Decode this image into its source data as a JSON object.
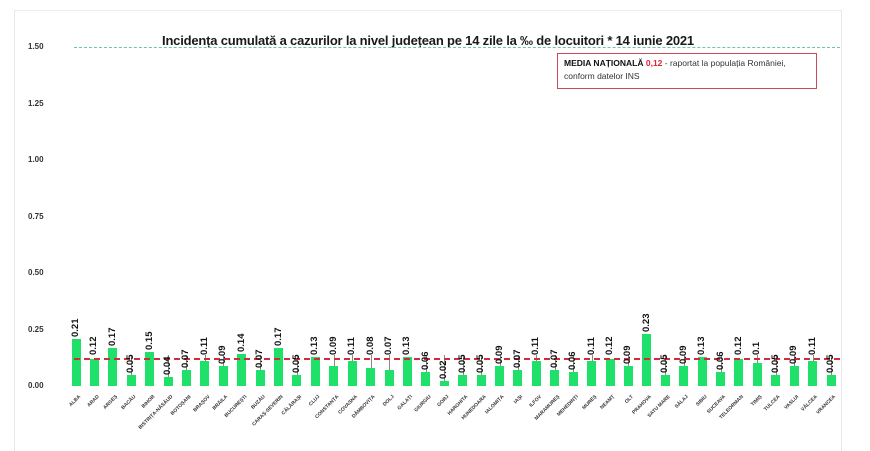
{
  "chart_data": {
    "type": "bar",
    "title": "Incidența cumulată a cazurilor la nivel județean pe 14 zile la ‰ de locuitori *  14 iunie 2021",
    "xlabel": "",
    "ylabel": "",
    "ylim": [
      0,
      1.5
    ],
    "yticks": [
      "0.00",
      "0.25",
      "0.50",
      "0.75",
      "1.00",
      "1.25",
      "1.50"
    ],
    "grid": false,
    "categories": [
      "ALBA",
      "ARAD",
      "ARGEȘ",
      "BACĂU",
      "BIHOR",
      "BISTRIȚA-NĂSĂUD",
      "BOTOȘANI",
      "BRAȘOV",
      "BRĂILA",
      "BUCUREȘTI",
      "BUZĂU",
      "CARAȘ-SEVERIN",
      "CĂLĂRAȘI",
      "CLUJ",
      "CONSTANȚA",
      "COVASNA",
      "DÂMBOVIȚA",
      "DOLJ",
      "GALAȚI",
      "GIURGIU",
      "GORJ",
      "HARGHITA",
      "HUNEDOARA",
      "IALOMIȚA",
      "IAȘI",
      "ILFOV",
      "MARAMUREȘ",
      "MEHEDINȚI",
      "MUREȘ",
      "NEAMȚ",
      "OLT",
      "PRAHOVA",
      "SATU MARE",
      "SĂLAJ",
      "SIBIU",
      "SUCEAVA",
      "TELEORMAN",
      "TIMIȘ",
      "TULCEA",
      "VASLUI",
      "VÂLCEA",
      "VRANCEA"
    ],
    "values": [
      0.21,
      0.12,
      0.17,
      0.05,
      0.15,
      0.04,
      0.07,
      0.11,
      0.09,
      0.14,
      0.07,
      0.17,
      0.05,
      0.13,
      0.09,
      0.11,
      0.08,
      0.07,
      0.13,
      0.06,
      0.02,
      0.05,
      0.05,
      0.09,
      0.07,
      0.11,
      0.07,
      0.06,
      0.11,
      0.12,
      0.09,
      0.23,
      0.05,
      0.09,
      0.13,
      0.06,
      0.12,
      0.1,
      0.05,
      0.09,
      0.11,
      0.05
    ],
    "value_labels": [
      "0.21",
      "0.12",
      "0.17",
      "0.05",
      "0.15",
      "0.04",
      "0.07",
      "0.11",
      "0.09",
      "0.14",
      "0.07",
      "0.17",
      "0.05",
      "0.13",
      "0.09",
      "0.11",
      "0.08",
      "0.07",
      "0.13",
      "0.06",
      "0.02",
      "0.05",
      "0.05",
      "0.09",
      "0.07",
      "0.11",
      "0.07",
      "0.06",
      "0.11",
      "0.12",
      "0.09",
      "0.23",
      "0.05",
      "0.09",
      "0.13",
      "0.06",
      "0.12",
      "0.1",
      "0.05",
      "0.09",
      "0.11",
      "0.05"
    ],
    "reference_lines": [
      {
        "name": "threshold",
        "value": 1.5,
        "style": "dashed",
        "color": "#6fc2b2"
      },
      {
        "name": "national_average",
        "value": 0.12,
        "style": "dashed",
        "color": "#d02c3c"
      }
    ],
    "annotation": {
      "lead": "MEDIA NAȚIONALĂ",
      "value": "0,12",
      "text": " - raportat la populația României, conform datelor INS"
    },
    "bar_color": "#1fe068"
  }
}
